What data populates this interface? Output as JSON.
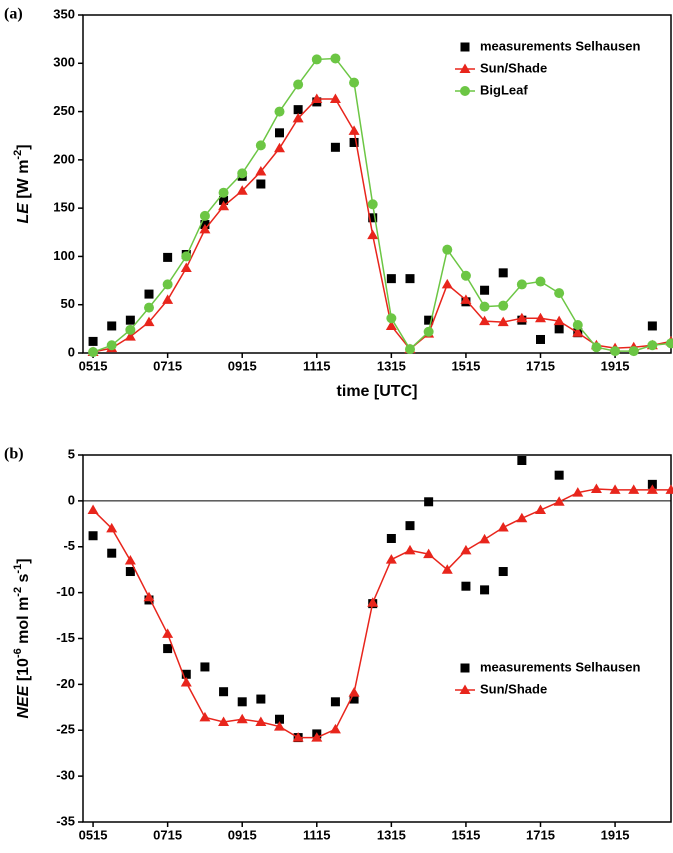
{
  "chart_data": [
    {
      "type": "line",
      "label": "(a)",
      "ylabel": [
        {
          "text": "LE",
          "style": "italic"
        },
        {
          "text": " [W m",
          "style": "normal"
        },
        {
          "text": "-2",
          "style": "sup"
        },
        {
          "text": "]",
          "style": "normal"
        }
      ],
      "xlabel": "time [UTC]",
      "x": [
        5.25,
        5.75,
        6.25,
        6.75,
        7.25,
        7.75,
        8.25,
        8.75,
        9.25,
        9.75,
        10.25,
        10.75,
        11.25,
        11.75,
        12.25,
        12.75,
        13.25,
        13.75,
        14.25,
        14.75,
        15.25,
        15.75,
        16.25,
        16.75,
        17.25,
        17.75,
        18.25,
        18.75,
        19.25,
        19.75,
        20.25,
        20.75
      ],
      "xlim": [
        4.98,
        20.75
      ],
      "xticks": [
        {
          "value": 5.25,
          "label": "0515"
        },
        {
          "value": 7.25,
          "label": "0715"
        },
        {
          "value": 9.25,
          "label": "0915"
        },
        {
          "value": 11.25,
          "label": "1115"
        },
        {
          "value": 13.25,
          "label": "1315"
        },
        {
          "value": 15.25,
          "label": "1515"
        },
        {
          "value": 17.25,
          "label": "1715"
        },
        {
          "value": 19.25,
          "label": "1915"
        }
      ],
      "ylim": [
        0,
        350
      ],
      "yticks": [
        0,
        50,
        100,
        150,
        200,
        250,
        300,
        350
      ],
      "legend": "upper right",
      "zero_line": false,
      "series": [
        {
          "name": "measurements Selhausen",
          "color": "#000000",
          "marker": "square",
          "line": false,
          "values": [
            12,
            28,
            34,
            61,
            99,
            102,
            133,
            158,
            183,
            175,
            228,
            252,
            260,
            213,
            218,
            140,
            77,
            77,
            34,
            null,
            53,
            65,
            83,
            34,
            14,
            25,
            21,
            null,
            null,
            null,
            28,
            null
          ]
        },
        {
          "name": "Sun/Shade",
          "color": "#e8251c",
          "marker": "triangle",
          "line": true,
          "values": [
            1,
            5,
            17,
            32,
            55,
            88,
            128,
            152,
            168,
            188,
            212,
            243,
            263,
            263,
            230,
            122,
            28,
            4,
            20,
            71,
            55,
            33,
            32,
            36,
            36,
            33,
            21,
            8,
            5,
            6,
            8,
            12
          ]
        },
        {
          "name": "BigLeaf",
          "color": "#6cc644",
          "marker": "circle",
          "line": true,
          "values": [
            1,
            8,
            24,
            47,
            71,
            100,
            142,
            166,
            186,
            215,
            250,
            278,
            304,
            305,
            280,
            154,
            36,
            4,
            22,
            107,
            80,
            48,
            49,
            71,
            74,
            62,
            29,
            6,
            2,
            2,
            8,
            10
          ]
        }
      ]
    },
    {
      "type": "line",
      "label": "(b)",
      "ylabel": [
        {
          "text": "NEE",
          "style": "italic"
        },
        {
          "text": " [10",
          "style": "normal"
        },
        {
          "text": "-6",
          "style": "sup"
        },
        {
          "text": " mol m",
          "style": "normal"
        },
        {
          "text": "-2",
          "style": "sup"
        },
        {
          "text": " s",
          "style": "normal"
        },
        {
          "text": "-1",
          "style": "sup"
        },
        {
          "text": "]",
          "style": "normal"
        }
      ],
      "xlabel": "time [UTC]",
      "x": [
        5.25,
        5.75,
        6.25,
        6.75,
        7.25,
        7.75,
        8.25,
        8.75,
        9.25,
        9.75,
        10.25,
        10.75,
        11.25,
        11.75,
        12.25,
        12.75,
        13.25,
        13.75,
        14.25,
        14.75,
        15.25,
        15.75,
        16.25,
        16.75,
        17.25,
        17.75,
        18.25,
        18.75,
        19.25,
        19.75,
        20.25,
        20.75
      ],
      "xlim": [
        4.98,
        20.75
      ],
      "xticks": [
        {
          "value": 5.25,
          "label": "0515"
        },
        {
          "value": 7.25,
          "label": "0715"
        },
        {
          "value": 9.25,
          "label": "0915"
        },
        {
          "value": 11.25,
          "label": "1115"
        },
        {
          "value": 13.25,
          "label": "1315"
        },
        {
          "value": 15.25,
          "label": "1515"
        },
        {
          "value": 17.25,
          "label": "1715"
        },
        {
          "value": 19.25,
          "label": "1915"
        }
      ],
      "ylim": [
        -35,
        5
      ],
      "yticks": [
        5,
        0,
        -5,
        -10,
        -15,
        -20,
        -25,
        -30,
        -35
      ],
      "legend": "lower right",
      "zero_line": true,
      "series": [
        {
          "name": "measurements Selhausen",
          "color": "#000000",
          "marker": "square",
          "line": false,
          "values": [
            -3.8,
            -5.7,
            -7.7,
            -10.8,
            -16.1,
            -18.9,
            -18.1,
            -20.8,
            -21.9,
            -21.6,
            -23.8,
            -25.8,
            -25.4,
            -21.9,
            -21.6,
            -11.2,
            -4.1,
            -2.7,
            -0.1,
            null,
            -9.3,
            -9.7,
            -7.7,
            4.4,
            null,
            2.8,
            null,
            null,
            null,
            null,
            1.8,
            null
          ]
        },
        {
          "name": "Sun/Shade",
          "color": "#e8251c",
          "marker": "triangle",
          "line": true,
          "values": [
            -1.0,
            -3.0,
            -6.5,
            -10.5,
            -14.5,
            -19.8,
            -23.6,
            -24.1,
            -23.8,
            -24.1,
            -24.6,
            -25.8,
            -25.8,
            -24.9,
            -20.9,
            -11.1,
            -6.4,
            -5.4,
            -5.8,
            -7.5,
            -5.4,
            -4.2,
            -2.9,
            -1.9,
            -1.0,
            -0.1,
            0.9,
            1.3,
            1.2,
            1.2,
            1.2,
            1.2
          ]
        }
      ]
    }
  ]
}
